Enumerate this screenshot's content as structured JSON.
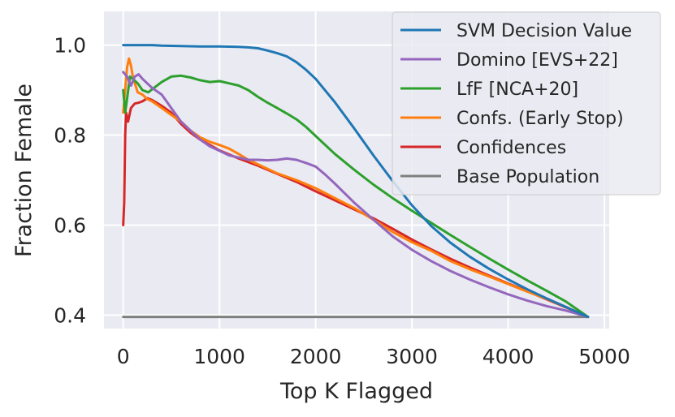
{
  "chart_data": {
    "type": "line",
    "title": "",
    "xlabel": "Top K Flagged",
    "ylabel": "Fraction Female",
    "xlim": [
      -200,
      5050
    ],
    "ylim": [
      0.37,
      1.075
    ],
    "xticks": [
      0,
      1000,
      2000,
      3000,
      4000,
      5000
    ],
    "xtick_labels": [
      "0",
      "1000",
      "2000",
      "3000",
      "4000",
      "5000"
    ],
    "yticks": [
      0.4,
      0.6,
      0.8,
      1.0
    ],
    "ytick_labels": [
      "0.4",
      "0.6",
      "0.8",
      "1.0"
    ],
    "grid": true,
    "legend_position": "top-right",
    "series": [
      {
        "name": "SVM Decision Value",
        "color": "#1f77b4",
        "points": [
          [
            0,
            1.0
          ],
          [
            300,
            1.0
          ],
          [
            400,
            0.999
          ],
          [
            600,
            0.998
          ],
          [
            800,
            0.997
          ],
          [
            1000,
            0.997
          ],
          [
            1200,
            0.996
          ],
          [
            1300,
            0.995
          ],
          [
            1400,
            0.993
          ],
          [
            1500,
            0.988
          ],
          [
            1600,
            0.982
          ],
          [
            1700,
            0.975
          ],
          [
            1800,
            0.962
          ],
          [
            1900,
            0.945
          ],
          [
            2000,
            0.925
          ],
          [
            2200,
            0.873
          ],
          [
            2400,
            0.815
          ],
          [
            2600,
            0.755
          ],
          [
            2800,
            0.698
          ],
          [
            3000,
            0.644
          ],
          [
            3200,
            0.598
          ],
          [
            3400,
            0.561
          ],
          [
            3600,
            0.53
          ],
          [
            3800,
            0.503
          ],
          [
            4000,
            0.479
          ],
          [
            4200,
            0.457
          ],
          [
            4400,
            0.437
          ],
          [
            4600,
            0.418
          ],
          [
            4830,
            0.396
          ]
        ]
      },
      {
        "name": "Domino [EVS+22]",
        "color": "#9467bd",
        "points": [
          [
            0,
            0.94
          ],
          [
            40,
            0.93
          ],
          [
            80,
            0.91
          ],
          [
            120,
            0.93
          ],
          [
            160,
            0.935
          ],
          [
            200,
            0.925
          ],
          [
            300,
            0.905
          ],
          [
            400,
            0.89
          ],
          [
            500,
            0.86
          ],
          [
            600,
            0.83
          ],
          [
            700,
            0.81
          ],
          [
            800,
            0.79
          ],
          [
            900,
            0.775
          ],
          [
            1000,
            0.765
          ],
          [
            1100,
            0.755
          ],
          [
            1200,
            0.75
          ],
          [
            1300,
            0.745
          ],
          [
            1400,
            0.745
          ],
          [
            1500,
            0.744
          ],
          [
            1600,
            0.745
          ],
          [
            1700,
            0.748
          ],
          [
            1800,
            0.745
          ],
          [
            1900,
            0.738
          ],
          [
            2000,
            0.73
          ],
          [
            2100,
            0.712
          ],
          [
            2200,
            0.692
          ],
          [
            2400,
            0.65
          ],
          [
            2600,
            0.612
          ],
          [
            2800,
            0.575
          ],
          [
            3000,
            0.545
          ],
          [
            3200,
            0.52
          ],
          [
            3400,
            0.498
          ],
          [
            3600,
            0.479
          ],
          [
            3800,
            0.462
          ],
          [
            4000,
            0.446
          ],
          [
            4200,
            0.432
          ],
          [
            4400,
            0.42
          ],
          [
            4600,
            0.41
          ],
          [
            4830,
            0.396
          ]
        ]
      },
      {
        "name": "LfF [NCA+20]",
        "color": "#2ca02c",
        "points": [
          [
            0,
            0.9
          ],
          [
            20,
            0.85
          ],
          [
            40,
            0.88
          ],
          [
            70,
            0.93
          ],
          [
            100,
            0.925
          ],
          [
            150,
            0.915
          ],
          [
            200,
            0.9
          ],
          [
            260,
            0.895
          ],
          [
            320,
            0.905
          ],
          [
            400,
            0.918
          ],
          [
            500,
            0.93
          ],
          [
            600,
            0.932
          ],
          [
            700,
            0.928
          ],
          [
            800,
            0.922
          ],
          [
            900,
            0.918
          ],
          [
            1000,
            0.92
          ],
          [
            1100,
            0.915
          ],
          [
            1200,
            0.91
          ],
          [
            1300,
            0.9
          ],
          [
            1400,
            0.885
          ],
          [
            1500,
            0.872
          ],
          [
            1600,
            0.86
          ],
          [
            1700,
            0.848
          ],
          [
            1800,
            0.835
          ],
          [
            1900,
            0.818
          ],
          [
            2000,
            0.798
          ],
          [
            2200,
            0.758
          ],
          [
            2400,
            0.723
          ],
          [
            2600,
            0.69
          ],
          [
            2800,
            0.66
          ],
          [
            3000,
            0.632
          ],
          [
            3200,
            0.605
          ],
          [
            3400,
            0.578
          ],
          [
            3600,
            0.552
          ],
          [
            3800,
            0.526
          ],
          [
            4000,
            0.501
          ],
          [
            4200,
            0.477
          ],
          [
            4400,
            0.454
          ],
          [
            4600,
            0.43
          ],
          [
            4830,
            0.396
          ]
        ]
      },
      {
        "name": "Confs. (Early Stop)",
        "color": "#ff7f0e",
        "points": [
          [
            0,
            0.85
          ],
          [
            20,
            0.9
          ],
          [
            40,
            0.95
          ],
          [
            60,
            0.97
          ],
          [
            80,
            0.955
          ],
          [
            100,
            0.93
          ],
          [
            150,
            0.895
          ],
          [
            200,
            0.89
          ],
          [
            250,
            0.88
          ],
          [
            300,
            0.875
          ],
          [
            400,
            0.86
          ],
          [
            500,
            0.845
          ],
          [
            600,
            0.83
          ],
          [
            700,
            0.81
          ],
          [
            800,
            0.795
          ],
          [
            900,
            0.785
          ],
          [
            1000,
            0.778
          ],
          [
            1100,
            0.77
          ],
          [
            1200,
            0.758
          ],
          [
            1300,
            0.745
          ],
          [
            1400,
            0.735
          ],
          [
            1500,
            0.725
          ],
          [
            1600,
            0.715
          ],
          [
            1800,
            0.7
          ],
          [
            2000,
            0.682
          ],
          [
            2200,
            0.66
          ],
          [
            2400,
            0.638
          ],
          [
            2600,
            0.612
          ],
          [
            2800,
            0.585
          ],
          [
            3000,
            0.562
          ],
          [
            3200,
            0.543
          ],
          [
            3400,
            0.52
          ],
          [
            3600,
            0.502
          ],
          [
            3800,
            0.486
          ],
          [
            4000,
            0.469
          ],
          [
            4200,
            0.452
          ],
          [
            4400,
            0.436
          ],
          [
            4600,
            0.418
          ],
          [
            4830,
            0.396
          ]
        ]
      },
      {
        "name": "Confidences",
        "color": "#d62728",
        "points": [
          [
            0,
            0.6
          ],
          [
            10,
            0.65
          ],
          [
            20,
            0.8
          ],
          [
            30,
            0.85
          ],
          [
            50,
            0.83
          ],
          [
            80,
            0.86
          ],
          [
            120,
            0.87
          ],
          [
            160,
            0.872
          ],
          [
            200,
            0.875
          ],
          [
            250,
            0.882
          ],
          [
            300,
            0.878
          ],
          [
            400,
            0.865
          ],
          [
            500,
            0.85
          ],
          [
            600,
            0.825
          ],
          [
            700,
            0.805
          ],
          [
            800,
            0.79
          ],
          [
            900,
            0.778
          ],
          [
            1000,
            0.766
          ],
          [
            1200,
            0.748
          ],
          [
            1400,
            0.732
          ],
          [
            1600,
            0.714
          ],
          [
            1800,
            0.696
          ],
          [
            2000,
            0.675
          ],
          [
            2200,
            0.655
          ],
          [
            2400,
            0.635
          ],
          [
            2600,
            0.615
          ],
          [
            2800,
            0.592
          ],
          [
            3000,
            0.568
          ],
          [
            3200,
            0.546
          ],
          [
            3400,
            0.525
          ],
          [
            3600,
            0.506
          ],
          [
            3800,
            0.488
          ],
          [
            4000,
            0.47
          ],
          [
            4200,
            0.453
          ],
          [
            4400,
            0.435
          ],
          [
            4600,
            0.417
          ],
          [
            4830,
            0.396
          ]
        ]
      },
      {
        "name": "Base Population",
        "color": "#7f7f7f",
        "points": [
          [
            0,
            0.396
          ],
          [
            4830,
            0.396
          ]
        ]
      }
    ]
  }
}
